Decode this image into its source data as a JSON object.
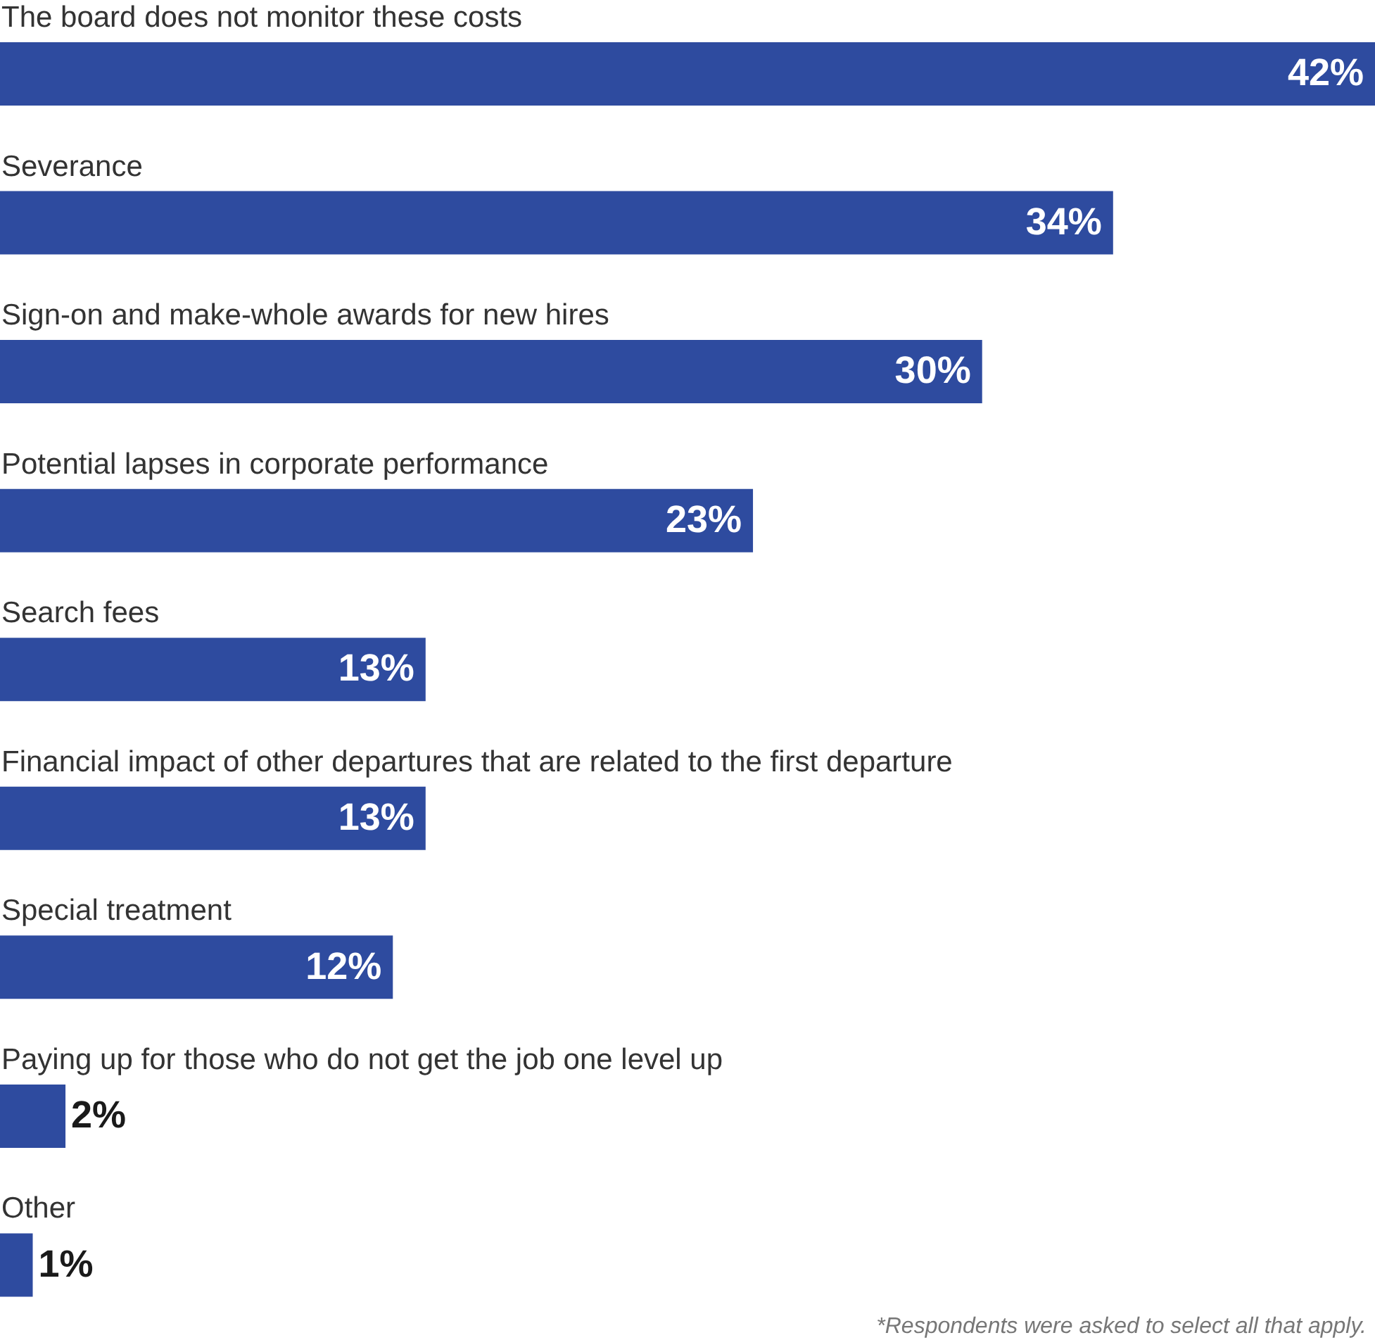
{
  "chart_data": {
    "type": "bar",
    "orientation": "horizontal",
    "categories": [
      "The board does not monitor these costs",
      "Severance",
      "Sign-on and make-whole awards for new hires",
      "Potential lapses in corporate performance",
      "Search fees",
      "Financial impact of other departures that are related to the first departure",
      "Special treatment",
      "Paying up for those who do not get the job one level up",
      "Other"
    ],
    "values": [
      42,
      34,
      30,
      23,
      13,
      13,
      12,
      2,
      1
    ],
    "value_labels": [
      "42%",
      "34%",
      "30%",
      "23%",
      "13%",
      "13%",
      "12%",
      "2%",
      "1%"
    ],
    "color": "#2e4b9f",
    "annotations": [
      "*Respondents were asked to select all that apply."
    ]
  }
}
